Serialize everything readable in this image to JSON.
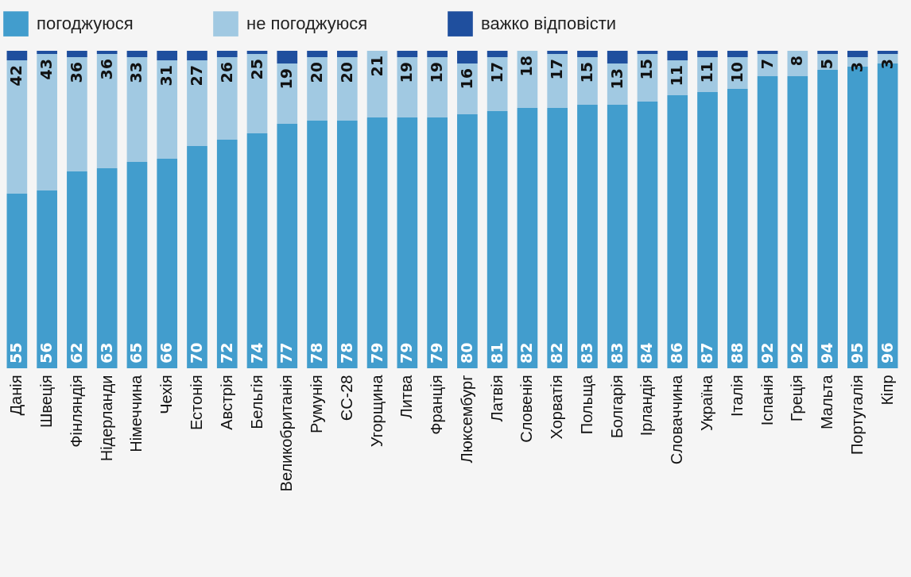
{
  "chart_data": {
    "type": "bar",
    "stacked": true,
    "legend": "top",
    "tick_labels": "x",
    "ylim": [
      0,
      100
    ],
    "categories": [
      "Данія",
      "Швеція",
      "Фінляндія",
      "Нідерланди",
      "Німеччина",
      "Чехія",
      "Естонія",
      "Австрія",
      "Бельгія",
      "Великобританія",
      "Румунія",
      "ЄС-28",
      "Угорщина",
      "Литва",
      "Франція",
      "Люксембург",
      "Латвія",
      "Словенія",
      "Хорватія",
      "Польща",
      "Болгарія",
      "Ірландія",
      "Словаччина",
      "Україна",
      "Італія",
      "Іспанія",
      "Греція",
      "Мальта",
      "Португалія",
      "Кіпр"
    ],
    "series": [
      {
        "name": "погоджуюся",
        "color": "#429dcd",
        "values": [
          55,
          56,
          62,
          63,
          65,
          66,
          70,
          72,
          74,
          77,
          78,
          78,
          79,
          79,
          79,
          80,
          81,
          82,
          82,
          83,
          83,
          84,
          86,
          87,
          88,
          92,
          92,
          94,
          95,
          96
        ],
        "value_labels": [
          "55",
          "56",
          "62",
          "63",
          "65",
          "66",
          "70",
          "72",
          "74",
          "77",
          "78",
          "78",
          "79",
          "79",
          "79",
          "80",
          "81",
          "82",
          "82",
          "83",
          "83",
          "84",
          "86",
          "87",
          "88",
          "92",
          "92",
          "94",
          "95",
          "96"
        ]
      },
      {
        "name": "не погоджуюся",
        "color": "#a1c9e2",
        "values": [
          42,
          43,
          36,
          36,
          33,
          31,
          27,
          26,
          25,
          19,
          20,
          20,
          21,
          19,
          19,
          16,
          17,
          18,
          17,
          15,
          13,
          15,
          11,
          11,
          10,
          7,
          8,
          5,
          3,
          3
        ],
        "value_labels": [
          "42",
          "43",
          "36",
          "36",
          "33",
          "31",
          "27",
          "26",
          "25",
          "19",
          "20",
          "20",
          "21",
          "19",
          "19",
          "16",
          "17",
          "18",
          "17",
          "15",
          "13",
          "15",
          "11",
          "11",
          "10",
          "7",
          "8",
          "5",
          "3",
          "3"
        ]
      },
      {
        "name": "важко відповісти",
        "color": "#1f4f9e",
        "values": [
          3,
          1,
          2,
          1,
          2,
          3,
          3,
          2,
          1,
          4,
          2,
          2,
          0,
          2,
          2,
          4,
          2,
          0,
          1,
          2,
          4,
          1,
          3,
          2,
          2,
          1,
          0,
          1,
          2,
          1
        ]
      }
    ]
  }
}
